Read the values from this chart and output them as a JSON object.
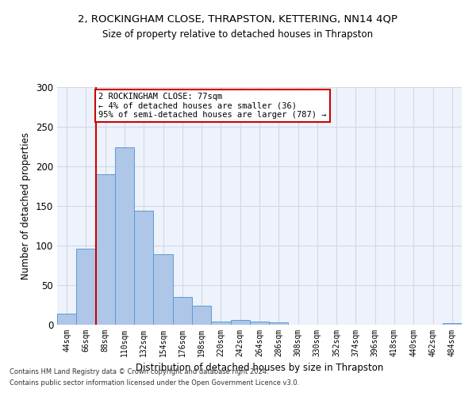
{
  "title1": "2, ROCKINGHAM CLOSE, THRAPSTON, KETTERING, NN14 4QP",
  "title2": "Size of property relative to detached houses in Thrapston",
  "xlabel": "Distribution of detached houses by size in Thrapston",
  "ylabel": "Number of detached properties",
  "bin_labels": [
    "44sqm",
    "66sqm",
    "88sqm",
    "110sqm",
    "132sqm",
    "154sqm",
    "176sqm",
    "198sqm",
    "220sqm",
    "242sqm",
    "264sqm",
    "286sqm",
    "308sqm",
    "330sqm",
    "352sqm",
    "374sqm",
    "396sqm",
    "418sqm",
    "440sqm",
    "462sqm",
    "484sqm"
  ],
  "bar_values": [
    14,
    96,
    190,
    224,
    144,
    89,
    35,
    24,
    4,
    6,
    4,
    3,
    0,
    0,
    0,
    0,
    0,
    0,
    0,
    0,
    2
  ],
  "bar_color": "#aec6e8",
  "bar_edgecolor": "#5b9bd5",
  "grid_color": "#d0d8e8",
  "background_color": "#eef2fa",
  "annotation_text": "2 ROCKINGHAM CLOSE: 77sqm\n← 4% of detached houses are smaller (36)\n95% of semi-detached houses are larger (787) →",
  "annotation_box_color": "#ffffff",
  "annotation_box_edge": "#cc0000",
  "footnote1": "Contains HM Land Registry data © Crown copyright and database right 2024.",
  "footnote2": "Contains public sector information licensed under the Open Government Licence v3.0.",
  "ylim": [
    0,
    300
  ],
  "yticks": [
    0,
    50,
    100,
    150,
    200,
    250,
    300
  ],
  "vline_pos": 1.5
}
